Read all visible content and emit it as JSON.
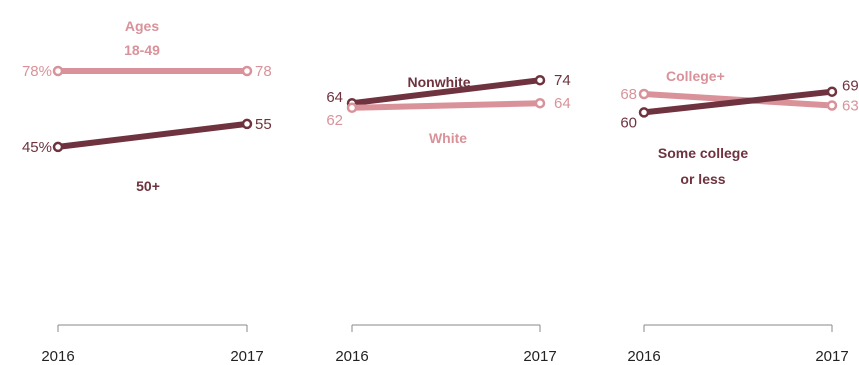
{
  "colors": {
    "dark": "#6e333f",
    "light": "#d9929a",
    "axis": "#8a8a8a",
    "tick_text": "#222222"
  },
  "chart_data": [
    {
      "type": "line",
      "x": [
        "2016",
        "2017"
      ],
      "series": [
        {
          "name": "Ages 18-49",
          "label_lines": [
            "Ages",
            "18-49"
          ],
          "values": [
            78,
            78
          ],
          "value_labels": [
            "78%",
            "78"
          ],
          "color": "light"
        },
        {
          "name": "50+",
          "label_lines": [
            "50+"
          ],
          "values": [
            45,
            55
          ],
          "value_labels": [
            "45%",
            "55"
          ],
          "color": "dark"
        }
      ]
    },
    {
      "type": "line",
      "x": [
        "2016",
        "2017"
      ],
      "series": [
        {
          "name": "Nonwhite",
          "label_lines": [
            "Nonwhite"
          ],
          "values": [
            64,
            74
          ],
          "value_labels": [
            "64",
            "74"
          ],
          "color": "dark"
        },
        {
          "name": "White",
          "label_lines": [
            "White"
          ],
          "values": [
            62,
            64
          ],
          "value_labels": [
            "62",
            "64"
          ],
          "color": "light"
        }
      ]
    },
    {
      "type": "line",
      "x": [
        "2016",
        "2017"
      ],
      "series": [
        {
          "name": "College+",
          "label_lines": [
            "College+"
          ],
          "values": [
            68,
            63
          ],
          "value_labels": [
            "68",
            "63"
          ],
          "color": "light"
        },
        {
          "name": "Some college or less",
          "label_lines": [
            "Some college",
            "or less"
          ],
          "values": [
            60,
            69
          ],
          "value_labels": [
            "60",
            "69"
          ],
          "color": "dark"
        }
      ]
    }
  ]
}
